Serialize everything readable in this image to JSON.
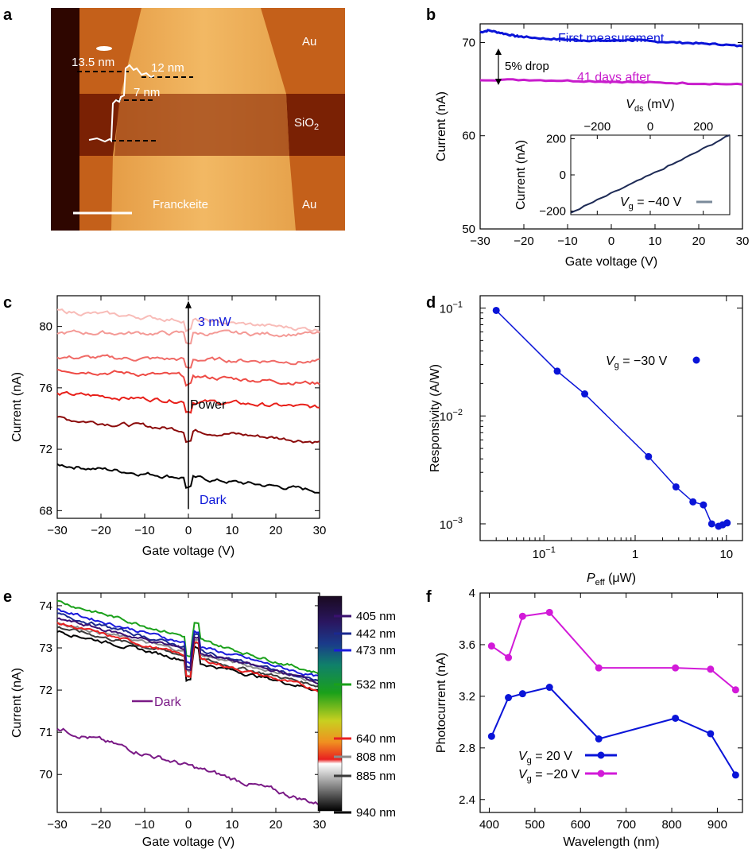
{
  "panels": {
    "a": "a",
    "b": "b",
    "c": "c",
    "d": "d",
    "e": "e",
    "f": "f"
  },
  "afm": {
    "labels": {
      "au_top": "Au",
      "sio2": "SiO",
      "sio2_sub": "2",
      "au_bottom": "Au",
      "franckeite": "Franckeite"
    },
    "heights": {
      "h1": "13.5 nm",
      "h2": "12 nm",
      "h3": "7 nm"
    },
    "colors": {
      "dark": "#2e0600",
      "au": "#d06a1c",
      "flake": "#f2b558",
      "sio2": "#7a2104"
    }
  },
  "chart_data": [
    {
      "id": "b",
      "type": "line",
      "xlabel": "Gate voltage (V)",
      "ylabel": "Current (nA)",
      "xlim": [
        -30,
        30
      ],
      "ylim": [
        50,
        72
      ],
      "xticks": [
        -30,
        -20,
        -10,
        0,
        10,
        20,
        30
      ],
      "yticks": [
        50,
        60,
        70
      ],
      "series": [
        {
          "name": "First measurement",
          "color": "#0a14d8",
          "x": [
            -30,
            -28,
            -25,
            -22,
            -20,
            -15,
            -10,
            -5,
            0,
            5,
            10,
            15,
            20,
            25,
            30
          ],
          "y": [
            71.1,
            71.3,
            71.0,
            70.7,
            70.6,
            70.4,
            70.3,
            70.2,
            70.2,
            70.3,
            70.1,
            70.0,
            69.9,
            69.8,
            69.6
          ]
        },
        {
          "name": "41 days after",
          "color": "#c81ccc",
          "x": [
            -30,
            -20,
            -10,
            0,
            10,
            20,
            30
          ],
          "y": [
            66.0,
            66.0,
            65.9,
            65.8,
            65.7,
            65.6,
            65.5
          ]
        }
      ],
      "annotation": "5% drop",
      "inset": {
        "type": "line",
        "xlabel_main": "V",
        "xlabel_sub": "ds",
        "xlabel_unit": " (mV)",
        "ylabel": "Current (nA)",
        "xlim": [
          -300,
          300
        ],
        "ylim": [
          -220,
          220
        ],
        "xticks": [
          -200,
          0,
          200
        ],
        "yticks": [
          -200,
          0,
          200
        ],
        "color": "#1d2a55",
        "x": [
          -300,
          -200,
          -100,
          0,
          100,
          200,
          300
        ],
        "y": [
          -210,
          -140,
          -70,
          0,
          70,
          145,
          220
        ],
        "legend_main": "V",
        "legend_sub": "g",
        "legend_rest": " = −40 V"
      }
    },
    {
      "id": "c",
      "type": "line",
      "xlabel": "Gate voltage (V)",
      "ylabel": "Current (nA)",
      "xlim": [
        -30,
        30
      ],
      "ylim": [
        67.5,
        82
      ],
      "xticks": [
        -30,
        -20,
        -10,
        0,
        10,
        20,
        30
      ],
      "yticks": [
        68,
        72,
        76,
        80
      ],
      "series": [
        {
          "color": "#000000",
          "start": 71.0,
          "end": 69.3
        },
        {
          "color": "#8b0a0a",
          "start": 74.0,
          "end": 72.5
        },
        {
          "color": "#e8201a",
          "start": 75.6,
          "end": 74.7
        },
        {
          "color": "#ee4a44",
          "start": 77.2,
          "end": 76.3
        },
        {
          "color": "#f06a66",
          "start": 78.0,
          "end": 77.7
        },
        {
          "color": "#f49a96",
          "start": 79.6,
          "end": 79.5
        },
        {
          "color": "#f8bcb8",
          "start": 81.0,
          "end": 79.8
        }
      ],
      "labels": {
        "top": "3 mW",
        "middle": "Power",
        "bottom": "Dark"
      }
    },
    {
      "id": "d",
      "type": "scatter",
      "xlabel_main": "P",
      "xlabel_sub": "eff",
      "xlabel_unit": " (μW)",
      "ylabel": "Responsivity (A/W)",
      "xscale": "log",
      "yscale": "log",
      "xlim": [
        0.02,
        15
      ],
      "ylim": [
        0.0007,
        0.13
      ],
      "xticklabels": [
        "10",
        "1",
        "10"
      ],
      "xtick_exp": [
        "−1",
        "",
        ""
      ],
      "yticklabels": [
        "10",
        "10",
        "10"
      ],
      "ytick_exp": [
        "−3",
        "−2",
        "−1"
      ],
      "color": "#0a14d8",
      "x": [
        0.03,
        0.14,
        0.28,
        1.4,
        2.8,
        4.3,
        5.6,
        6.9,
        8.2,
        9.1,
        10.2
      ],
      "y": [
        0.095,
        0.026,
        0.016,
        0.0042,
        0.0022,
        0.0016,
        0.0015,
        0.001,
        0.00095,
        0.00098,
        0.00102
      ],
      "legend_main": "V",
      "legend_sub": "g",
      "legend_rest": " = −30 V"
    },
    {
      "id": "e",
      "type": "line",
      "xlabel": "Gate voltage (V)",
      "ylabel": "Current (nA)",
      "xlim": [
        -30,
        30
      ],
      "ylim": [
        69.1,
        74.3
      ],
      "xticks": [
        -30,
        -20,
        -10,
        0,
        10,
        20,
        30
      ],
      "yticks": [
        70,
        71,
        72,
        73,
        74
      ],
      "series": [
        {
          "name": "Dark",
          "color": "#7a1a86",
          "start": 71.1,
          "end": 69.3
        },
        {
          "name": "940 nm",
          "color": "#000000",
          "start": 73.4,
          "end": 72.0
        },
        {
          "name": "885 nm",
          "color": "#3a3a3a",
          "start": 73.5,
          "end": 72.1
        },
        {
          "name": "808 nm",
          "color": "#8c8c8c",
          "start": 73.6,
          "end": 72.2
        },
        {
          "name": "640 nm",
          "color": "#e82020",
          "start": 73.6,
          "end": 72.0
        },
        {
          "name": "532 nm",
          "color": "#1aa01a",
          "start": 74.1,
          "end": 72.4
        },
        {
          "name": "473 nm",
          "color": "#1a1adc",
          "start": 73.9,
          "end": 72.3
        },
        {
          "name": "442 nm",
          "color": "#1a2890",
          "start": 73.8,
          "end": 72.2
        },
        {
          "name": "405 nm",
          "color": "#3a1070",
          "start": 73.7,
          "end": 72.2
        }
      ],
      "colorbar_labels": [
        "405 nm",
        "442 nm",
        "473 nm",
        "532 nm",
        "640 nm",
        "808 nm",
        "885 nm",
        "940 nm"
      ],
      "dark_label": "Dark"
    },
    {
      "id": "f",
      "type": "line",
      "xlabel": "Wavelength (nm)",
      "ylabel": "Photocurrent (nA)",
      "xlim": [
        380,
        955
      ],
      "ylim": [
        2.3,
        4.0
      ],
      "xticks": [
        400,
        500,
        600,
        700,
        800,
        900
      ],
      "yticks": [
        2.4,
        2.8,
        3.2,
        3.6,
        4
      ],
      "yticklabels": [
        "2.4",
        "2.8",
        "3.2",
        "3.6",
        "4"
      ],
      "series": [
        {
          "legend_main": "V",
          "legend_sub": "g",
          "legend_rest": " = 20 V",
          "color": "#0a14d8",
          "x": [
            405,
            442,
            473,
            532,
            640,
            808,
            885,
            940
          ],
          "y": [
            2.89,
            3.19,
            3.22,
            3.27,
            2.87,
            3.03,
            2.91,
            2.59
          ]
        },
        {
          "legend_main": "V",
          "legend_sub": "g",
          "legend_rest": " = −20 V",
          "color": "#d21ad8",
          "x": [
            405,
            442,
            473,
            532,
            640,
            808,
            885,
            940
          ],
          "y": [
            3.59,
            3.5,
            3.82,
            3.85,
            3.42,
            3.42,
            3.41,
            3.25
          ]
        }
      ]
    }
  ]
}
